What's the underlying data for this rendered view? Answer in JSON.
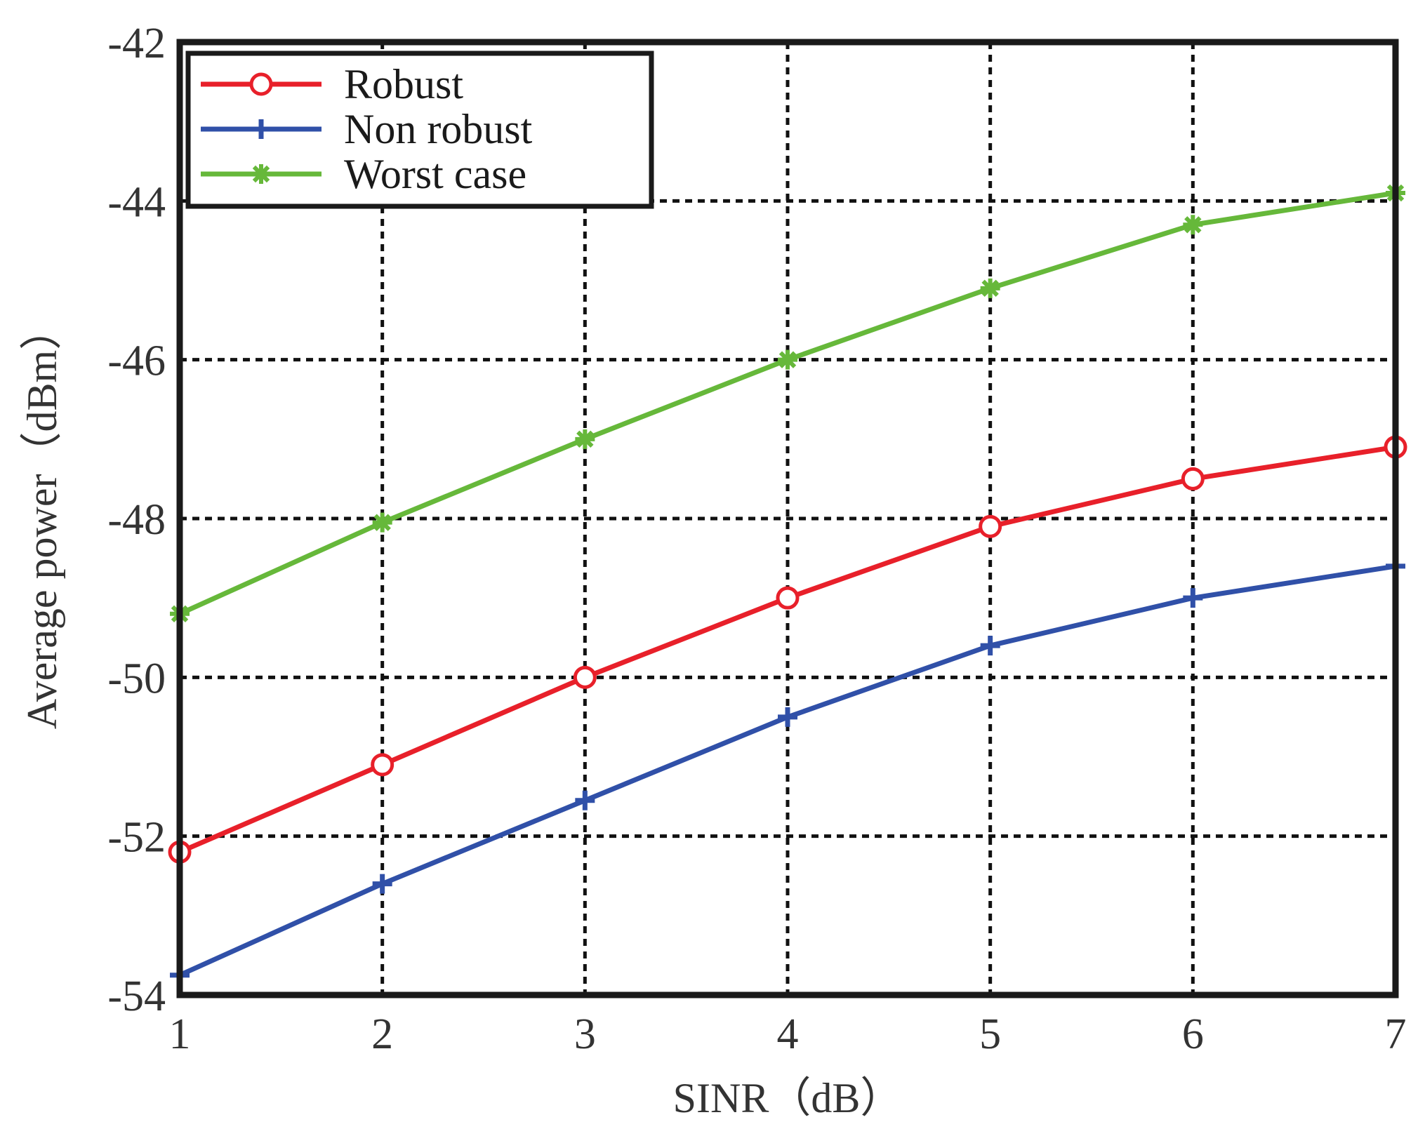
{
  "chart_data": {
    "type": "line",
    "xlabel": "SINR（dB）",
    "ylabel": "Average power（dBm）",
    "xlim": [
      1,
      7
    ],
    "ylim": [
      -54,
      -42
    ],
    "xticks": [
      1,
      2,
      3,
      4,
      5,
      6,
      7
    ],
    "yticks": [
      -54,
      -52,
      -50,
      -48,
      -46,
      -44,
      -42
    ],
    "grid": true,
    "legend_position": "top-left",
    "x": [
      1,
      2,
      3,
      4,
      5,
      6,
      7
    ],
    "series": [
      {
        "name": "Robust",
        "color": "#e8202a",
        "marker": "circle",
        "values": [
          -52.2,
          -51.1,
          -50.0,
          -49.0,
          -48.1,
          -47.5,
          -47.1
        ]
      },
      {
        "name": "Non robust",
        "color": "#3050a8",
        "marker": "plus",
        "values": [
          -53.75,
          -52.6,
          -51.55,
          -50.5,
          -49.6,
          -49.0,
          -48.6
        ]
      },
      {
        "name": "Worst case",
        "color": "#66b83a",
        "marker": "asterisk",
        "values": [
          -49.2,
          -48.05,
          -47.0,
          -46.0,
          -45.1,
          -44.3,
          -43.9
        ]
      }
    ]
  }
}
